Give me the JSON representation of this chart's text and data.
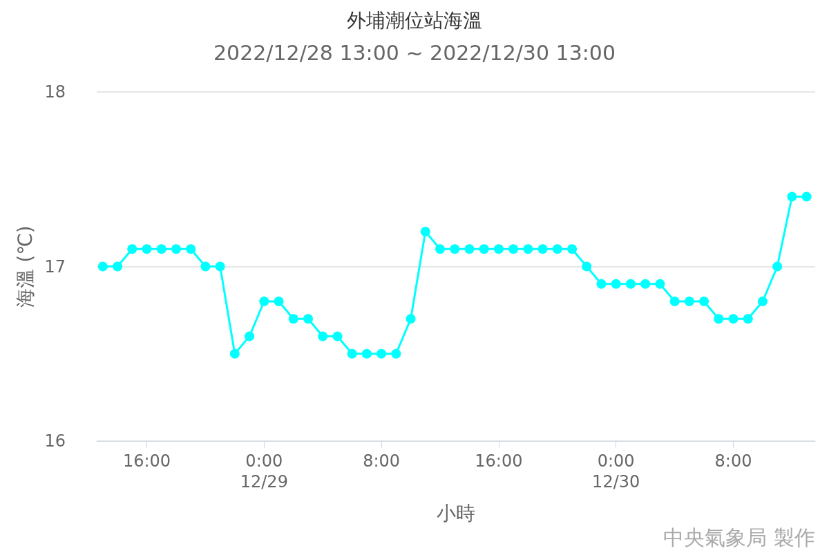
{
  "chart_data": {
    "type": "line",
    "title": "外埔潮位站海溫",
    "subtitle": "2022/12/28 13:00 ~ 2022/12/30 13:00",
    "xlabel": "小時",
    "ylabel": "海溫 (℃)",
    "annotations": [
      "中央氣象局 製作"
    ],
    "x": [
      "2022-12-28T13:00",
      "2022-12-28T14:00",
      "2022-12-28T15:00",
      "2022-12-28T16:00",
      "2022-12-28T17:00",
      "2022-12-28T18:00",
      "2022-12-28T19:00",
      "2022-12-28T20:00",
      "2022-12-28T21:00",
      "2022-12-28T22:00",
      "2022-12-28T23:00",
      "2022-12-29T00:00",
      "2022-12-29T01:00",
      "2022-12-29T02:00",
      "2022-12-29T03:00",
      "2022-12-29T04:00",
      "2022-12-29T05:00",
      "2022-12-29T06:00",
      "2022-12-29T07:00",
      "2022-12-29T08:00",
      "2022-12-29T09:00",
      "2022-12-29T10:00",
      "2022-12-29T11:00",
      "2022-12-29T12:00",
      "2022-12-29T13:00",
      "2022-12-29T14:00",
      "2022-12-29T15:00",
      "2022-12-29T16:00",
      "2022-12-29T17:00",
      "2022-12-29T18:00",
      "2022-12-29T19:00",
      "2022-12-29T20:00",
      "2022-12-29T21:00",
      "2022-12-29T22:00",
      "2022-12-29T23:00",
      "2022-12-30T00:00",
      "2022-12-30T01:00",
      "2022-12-30T02:00",
      "2022-12-30T03:00",
      "2022-12-30T04:00",
      "2022-12-30T05:00",
      "2022-12-30T06:00",
      "2022-12-30T07:00",
      "2022-12-30T08:00",
      "2022-12-30T09:00",
      "2022-12-30T10:00",
      "2022-12-30T11:00",
      "2022-12-30T12:00",
      "2022-12-30T13:00"
    ],
    "series": [
      {
        "color": "#00ffff",
        "values": [
          17.0,
          17.0,
          17.1,
          17.1,
          17.1,
          17.1,
          17.1,
          17.0,
          17.0,
          16.5,
          16.6,
          16.8,
          16.8,
          16.7,
          16.7,
          16.6,
          16.6,
          16.5,
          16.5,
          16.5,
          16.5,
          16.7,
          17.2,
          17.1,
          17.1,
          17.1,
          17.1,
          17.1,
          17.1,
          17.1,
          17.1,
          17.1,
          17.1,
          17.0,
          16.9,
          16.9,
          16.9,
          16.9,
          16.9,
          16.8,
          16.8,
          16.8,
          16.7,
          16.7,
          16.7,
          16.8,
          17.0,
          17.4,
          17.4
        ]
      }
    ],
    "xlim": [
      "2022-12-28T12:35",
      "2022-12-30T13:35"
    ],
    "xticks": [
      {
        "value": "2022-12-28T16:00",
        "label": "16:00"
      },
      {
        "value": "2022-12-29T00:00",
        "label": "0:00\n12/29"
      },
      {
        "value": "2022-12-29T08:00",
        "label": "8:00"
      },
      {
        "value": "2022-12-29T16:00",
        "label": "16:00"
      },
      {
        "value": "2022-12-30T00:00",
        "label": "0:00\n12/30"
      },
      {
        "value": "2022-12-30T08:00",
        "label": "8:00"
      }
    ],
    "ylim": [
      16,
      18
    ],
    "yticks": [
      16,
      17,
      18
    ],
    "grid": "y",
    "marker": "circle",
    "line_style": "solid"
  }
}
